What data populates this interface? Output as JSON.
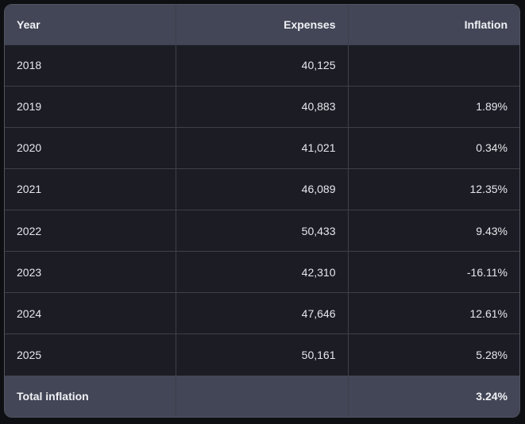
{
  "table": {
    "columns": [
      "Year",
      "Expenses",
      "Inflation"
    ],
    "rows": [
      {
        "year": "2018",
        "expenses": "40,125",
        "inflation": ""
      },
      {
        "year": "2019",
        "expenses": "40,883",
        "inflation": "1.89%"
      },
      {
        "year": "2020",
        "expenses": "41,021",
        "inflation": "0.34%"
      },
      {
        "year": "2021",
        "expenses": "46,089",
        "inflation": "12.35%"
      },
      {
        "year": "2022",
        "expenses": "50,433",
        "inflation": "9.43%"
      },
      {
        "year": "2023",
        "expenses": "42,310",
        "inflation": "-16.11%"
      },
      {
        "year": "2024",
        "expenses": "47,646",
        "inflation": "12.61%"
      },
      {
        "year": "2025",
        "expenses": "50,161",
        "inflation": "5.28%"
      }
    ],
    "footer": {
      "label": "Total inflation",
      "expenses": "",
      "inflation": "3.24%"
    }
  }
}
